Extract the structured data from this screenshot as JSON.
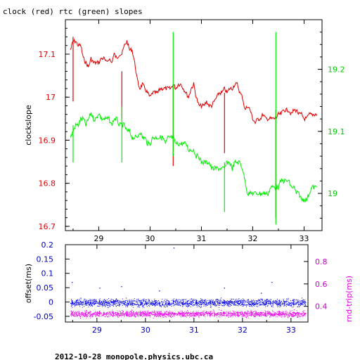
{
  "footer": "2012-10-28 monopole.physics.ubc.ca",
  "chart_data": [
    {
      "type": "line",
      "title": "clock (red) rtc (green) slopes",
      "ylabel": "clockslope",
      "xlim": [
        28.35,
        33.35
      ],
      "ylim_left": [
        16.69,
        17.18
      ],
      "ylim_right": [
        18.94,
        19.28
      ],
      "x_ticks": [
        "29",
        "30",
        "31",
        "32",
        "33"
      ],
      "y_ticks_left": [
        "16.7",
        "16.8",
        "16.9",
        "17",
        "17.1"
      ],
      "y_ticks_right": [
        "19",
        "19.1",
        "19.2"
      ],
      "colors": {
        "clock": "#dd0000",
        "rtc": "#00ee00",
        "spike": "#888800"
      },
      "series": [
        {
          "name": "clock",
          "axis": "left",
          "x": [
            28.45,
            28.5,
            28.55,
            28.6,
            28.65,
            28.7,
            28.75,
            28.8,
            28.85,
            28.9,
            28.95,
            29.0,
            29.05,
            29.1,
            29.15,
            29.2,
            29.25,
            29.3,
            29.35,
            29.4,
            29.45,
            29.5,
            29.55,
            29.6,
            29.65,
            29.7,
            29.75,
            29.8,
            29.85,
            29.9,
            29.95,
            30.0,
            30.05,
            30.1,
            30.15,
            30.2,
            30.25,
            30.3,
            30.35,
            30.4,
            30.45,
            30.5,
            30.55,
            30.6,
            30.65,
            30.7,
            30.75,
            30.8,
            30.85,
            30.9,
            30.95,
            31.0,
            31.05,
            31.1,
            31.15,
            31.2,
            31.25,
            31.3,
            31.35,
            31.4,
            31.45,
            31.5,
            31.55,
            31.6,
            31.65,
            31.7,
            31.75,
            31.8,
            31.85,
            31.9,
            31.95,
            32.0,
            32.05,
            32.1,
            32.15,
            32.2,
            32.25,
            32.3,
            32.35,
            32.4,
            32.45,
            32.5,
            32.55,
            32.6,
            32.65,
            32.7,
            32.75,
            32.8,
            32.85,
            32.9,
            32.95,
            33.0,
            33.05,
            33.1,
            33.15,
            33.2,
            33.25
          ],
          "y": [
            17.11,
            17.13,
            17.13,
            17.12,
            17.12,
            17.09,
            17.08,
            17.07,
            17.09,
            17.08,
            17.08,
            17.08,
            17.09,
            17.09,
            17.08,
            17.09,
            17.08,
            17.1,
            17.09,
            17.1,
            17.1,
            17.12,
            17.13,
            17.11,
            17.11,
            17.08,
            17.04,
            17.02,
            17.03,
            17.02,
            17.01,
            17.0,
            17.01,
            17.01,
            17.01,
            17.02,
            17.02,
            17.02,
            17.02,
            17.02,
            17.03,
            17.02,
            17.03,
            17.03,
            17.02,
            17.01,
            17.0,
            17.02,
            17.03,
            17.0,
            16.98,
            16.98,
            16.98,
            16.99,
            16.98,
            16.98,
            16.99,
            17.0,
            17.01,
            17.01,
            17.02,
            17.01,
            17.02,
            17.02,
            17.03,
            17.03,
            17.01,
            17.0,
            16.97,
            16.98,
            16.97,
            16.95,
            16.94,
            16.95,
            16.95,
            16.96,
            16.95,
            16.95,
            16.95,
            16.95,
            16.95,
            16.96,
            16.96,
            16.97,
            16.97,
            16.97,
            16.96,
            16.97,
            16.97,
            16.96,
            16.96,
            16.95,
            16.95,
            16.96,
            16.96,
            16.96,
            16.96
          ]
        },
        {
          "name": "rtc",
          "axis": "right",
          "x": [
            28.45,
            28.5,
            28.55,
            28.6,
            28.65,
            28.7,
            28.75,
            28.8,
            28.85,
            28.9,
            28.95,
            29.0,
            29.05,
            29.1,
            29.15,
            29.2,
            29.25,
            29.3,
            29.35,
            29.4,
            29.45,
            29.5,
            29.55,
            29.6,
            29.65,
            29.7,
            29.75,
            29.8,
            29.85,
            29.9,
            29.95,
            30.0,
            30.05,
            30.1,
            30.15,
            30.2,
            30.25,
            30.3,
            30.35,
            30.4,
            30.45,
            30.5,
            30.55,
            30.6,
            30.65,
            30.7,
            30.75,
            30.8,
            30.85,
            30.9,
            30.95,
            31.0,
            31.05,
            31.1,
            31.15,
            31.2,
            31.25,
            31.3,
            31.35,
            31.4,
            31.45,
            31.5,
            31.55,
            31.6,
            31.65,
            31.7,
            31.75,
            31.8,
            31.85,
            31.9,
            31.95,
            32.0,
            32.05,
            32.1,
            32.15,
            32.2,
            32.25,
            32.3,
            32.35,
            32.4,
            32.45,
            32.5,
            32.55,
            32.6,
            32.65,
            32.7,
            32.75,
            32.8,
            32.85,
            32.9,
            32.95,
            33.0,
            33.05,
            33.1,
            33.15,
            33.2,
            33.25
          ],
          "y": [
            19.09,
            19.1,
            19.11,
            19.11,
            19.12,
            19.12,
            19.11,
            19.12,
            19.13,
            19.12,
            19.12,
            19.13,
            19.12,
            19.12,
            19.12,
            19.12,
            19.11,
            19.12,
            19.12,
            19.11,
            19.11,
            19.11,
            19.1,
            19.1,
            19.09,
            19.09,
            19.09,
            19.1,
            19.09,
            19.09,
            19.08,
            19.08,
            19.09,
            19.09,
            19.09,
            19.09,
            19.09,
            19.08,
            19.09,
            19.09,
            19.09,
            19.08,
            19.08,
            19.08,
            19.08,
            19.08,
            19.07,
            19.07,
            19.07,
            19.06,
            19.06,
            19.05,
            19.05,
            19.05,
            19.05,
            19.04,
            19.04,
            19.04,
            19.04,
            19.04,
            19.04,
            19.05,
            19.05,
            19.04,
            19.05,
            19.05,
            19.05,
            19.04,
            19.02,
            19.0,
            19.0,
            19.0,
            19.0,
            19.0,
            19.0,
            19.0,
            19.0,
            19.0,
            19.01,
            19.01,
            19.01,
            19.01,
            19.02,
            19.02,
            19.02,
            19.02,
            19.01,
            19.01,
            19.0,
            19.0,
            18.99,
            18.99,
            18.99,
            19.0,
            19.01,
            19.01,
            19.01
          ]
        }
      ],
      "spikes": [
        {
          "x": 28.5,
          "series": "clock",
          "from": 16.99,
          "to": 17.14
        },
        {
          "x": 28.5,
          "series": "rtc",
          "from": 19.05,
          "to": 19.11
        },
        {
          "x": 29.45,
          "series": "clock",
          "from": 16.95,
          "to": 17.06
        },
        {
          "x": 29.45,
          "series": "rtc",
          "from": 19.05,
          "to": 19.14
        },
        {
          "x": 30.45,
          "series": "clock",
          "from": 16.84,
          "to": 17.03
        },
        {
          "x": 30.45,
          "series": "rtc",
          "from": 19.06,
          "to": 19.26
        },
        {
          "x": 31.45,
          "series": "clock",
          "from": 16.87,
          "to": 17.01
        },
        {
          "x": 31.45,
          "series": "rtc",
          "from": 18.97,
          "to": 19.05
        },
        {
          "x": 32.45,
          "series": "clock",
          "from": 16.72,
          "to": 16.97
        },
        {
          "x": 32.45,
          "series": "rtc",
          "from": 18.95,
          "to": 19.26
        }
      ]
    },
    {
      "type": "scatter",
      "ylabel_left": "offset(ms)",
      "ylabel_right": "rnd-trip(ms)",
      "xlim": [
        28.35,
        33.35
      ],
      "ylim_left": [
        -0.07,
        0.2
      ],
      "ylim_right": [
        0.26,
        0.95
      ],
      "x_ticks": [
        "29",
        "30",
        "31",
        "32",
        "33"
      ],
      "y_ticks_left": [
        "-0.05",
        "0",
        "0.05",
        "0.1",
        "0.15",
        "0.2"
      ],
      "y_ticks_right": [
        "0.4",
        "0.6",
        "0.8"
      ],
      "colors": {
        "offset": "#0000ee",
        "rndtrip": "#ee00ee",
        "ticks_left": "#0000bb",
        "ticks_right": "#cc00cc"
      },
      "series": [
        {
          "name": "offset",
          "axis": "left",
          "x_range": [
            28.45,
            33.3
          ],
          "mean": -0.002,
          "spread": 0.012
        },
        {
          "name": "rnd-trip",
          "axis": "right",
          "x_range": [
            28.45,
            33.3
          ],
          "mean": 0.335,
          "spread": 0.025
        }
      ],
      "outliers": [
        {
          "series": "offset",
          "x": 28.48,
          "y": 0.07
        },
        {
          "series": "offset",
          "x": 29.05,
          "y": 0.05
        },
        {
          "series": "offset",
          "x": 29.5,
          "y": 0.055
        },
        {
          "series": "offset",
          "x": 30.28,
          "y": 0.04
        },
        {
          "series": "offset",
          "x": 30.58,
          "y": 0.19
        },
        {
          "series": "offset",
          "x": 31.62,
          "y": 0.05
        },
        {
          "series": "offset",
          "x": 32.6,
          "y": 0.07
        },
        {
          "series": "offset",
          "x": 32.38,
          "y": 0.032
        }
      ]
    }
  ]
}
